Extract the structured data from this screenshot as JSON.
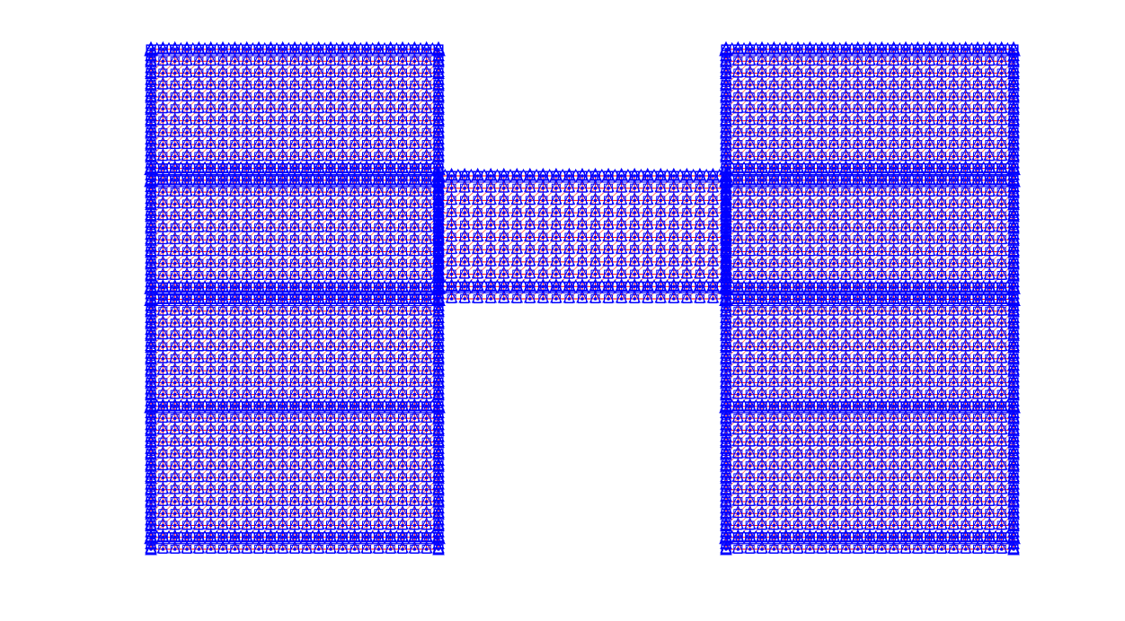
{
  "figure": {
    "kind": "finite-element mesh with boundary markers",
    "shape": "H",
    "colors": {
      "background": "#ffffff",
      "mesh_lines": "#ff0000",
      "markers": "#0000ff"
    },
    "markers": [
      "square",
      "triangle",
      "dot"
    ],
    "axes_visible": false,
    "regions": [
      {
        "name": "left-column",
        "cols": 24,
        "rows": 42,
        "mark_rows": [
          0,
          10,
          11,
          20,
          21,
          30,
          41
        ]
      },
      {
        "name": "middle-bridge",
        "cols": 22,
        "rows": 10,
        "mark_rows": [
          0,
          9
        ]
      },
      {
        "name": "right-column",
        "cols": 24,
        "rows": 42,
        "mark_rows": [
          0,
          10,
          11,
          20,
          21,
          30,
          41
        ]
      }
    ]
  }
}
